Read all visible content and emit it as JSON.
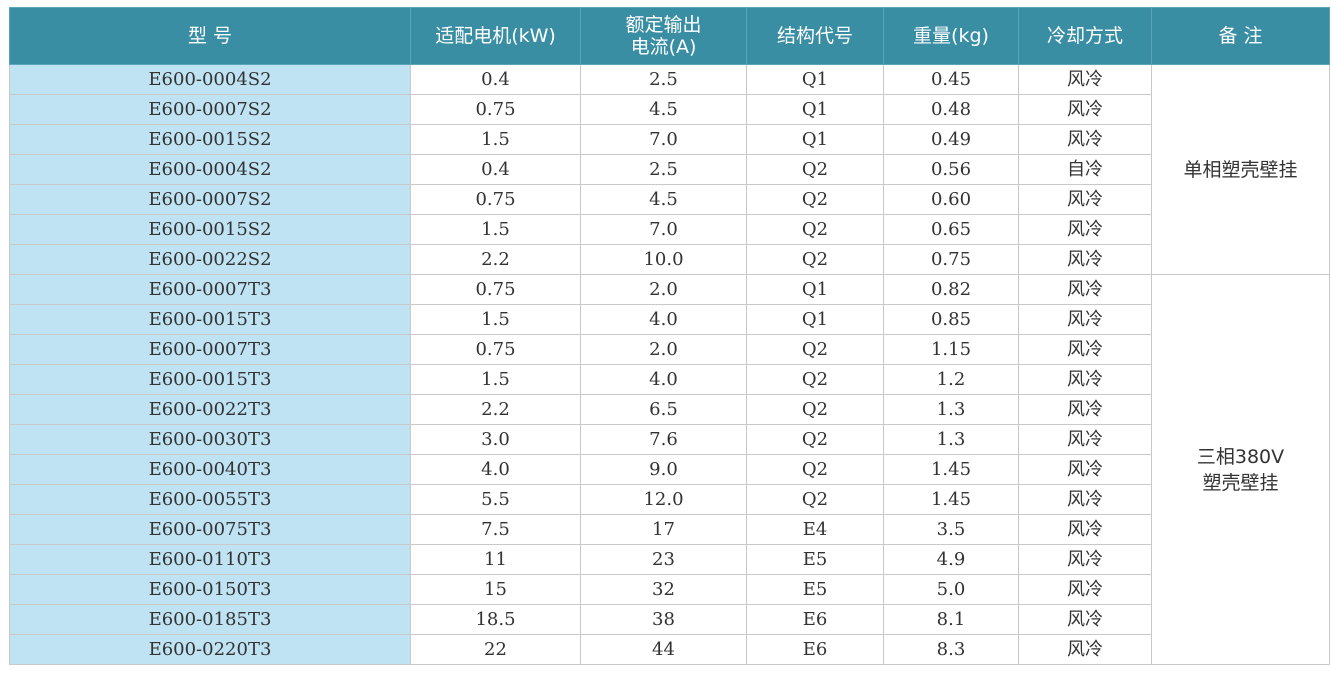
{
  "headers": [
    "型 号",
    "适配电机(kW)",
    "额定输出\n电流(A)",
    "结构代号",
    "重量(kg)",
    "冷却方式",
    "备 注"
  ],
  "rows": [
    [
      "E600-0004S2",
      "0.4",
      "2.5",
      "Q1",
      "0.45",
      "风冷"
    ],
    [
      "E600-0007S2",
      "0.75",
      "4.5",
      "Q1",
      "0.48",
      "风冷"
    ],
    [
      "E600-0015S2",
      "1.5",
      "7.0",
      "Q1",
      "0.49",
      "风冷"
    ],
    [
      "E600-0004S2",
      "0.4",
      "2.5",
      "Q2",
      "0.56",
      "自冷"
    ],
    [
      "E600-0007S2",
      "0.75",
      "4.5",
      "Q2",
      "0.60",
      "风冷"
    ],
    [
      "E600-0015S2",
      "1.5",
      "7.0",
      "Q2",
      "0.65",
      "风冷"
    ],
    [
      "E600-0022S2",
      "2.2",
      "10.0",
      "Q2",
      "0.75",
      "风冷"
    ],
    [
      "E600-0007T3",
      "0.75",
      "2.0",
      "Q1",
      "0.82",
      "风冷"
    ],
    [
      "E600-0015T3",
      "1.5",
      "4.0",
      "Q1",
      "0.85",
      "风冷"
    ],
    [
      "E600-0007T3",
      "0.75",
      "2.0",
      "Q2",
      "1.15",
      "风冷"
    ],
    [
      "E600-0015T3",
      "1.5",
      "4.0",
      "Q2",
      "1.2",
      "风冷"
    ],
    [
      "E600-0022T3",
      "2.2",
      "6.5",
      "Q2",
      "1.3",
      "风冷"
    ],
    [
      "E600-0030T3",
      "3.0",
      "7.6",
      "Q2",
      "1.3",
      "风冷"
    ],
    [
      "E600-0040T3",
      "4.0",
      "9.0",
      "Q2",
      "1.45",
      "风冷"
    ],
    [
      "E600-0055T3",
      "5.5",
      "12.0",
      "Q2",
      "1.45",
      "风冷"
    ],
    [
      "E600-0075T3",
      "7.5",
      "17",
      "E4",
      "3.5",
      "风冷"
    ],
    [
      "E600-0110T3",
      "11",
      "23",
      "E5",
      "4.9",
      "风冷"
    ],
    [
      "E600-0150T3",
      "15",
      "32",
      "E5",
      "5.0",
      "风冷"
    ],
    [
      "E600-0185T3",
      "18.5",
      "38",
      "E6",
      "8.1",
      "风冷"
    ],
    [
      "E600-0220T3",
      "22",
      "44",
      "E6",
      "8.3",
      "风冷"
    ]
  ],
  "notes": [
    {
      "text": "单相塑壳壁挂",
      "start_row": 0,
      "row_count": 7
    },
    {
      "text": "三相380V\n塑壳壁挂",
      "start_row": 7,
      "row_count": 13
    }
  ]
}
